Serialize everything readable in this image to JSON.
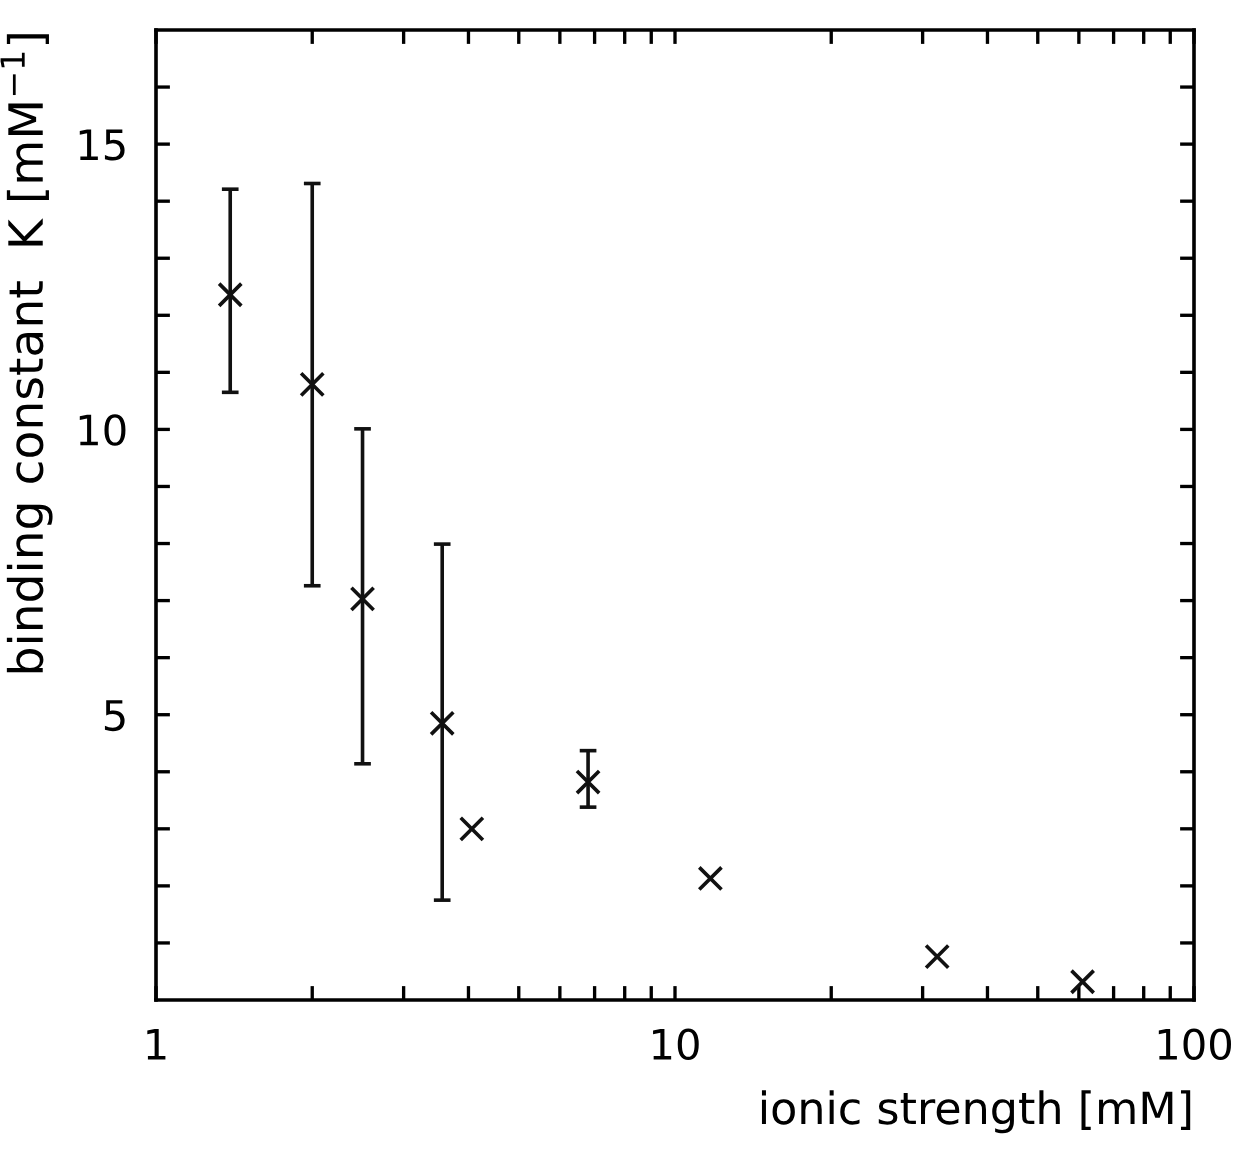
{
  "chart_data": {
    "type": "scatter",
    "xlabel": "ionic strength [mM]",
    "ylabel": "binding constant  K [mM$^{−1}$]",
    "x": [
      1.39,
      2.0,
      2.5,
      3.56,
      4.06,
      6.8,
      11.7,
      32,
      61
    ],
    "values": [
      12.36,
      10.79,
      7.03,
      4.85,
      3.0,
      3.82,
      2.13,
      0.76,
      0.32
    ],
    "errors": [
      [
        10.65,
        14.21
      ],
      [
        7.26,
        14.31
      ],
      [
        4.14,
        10.01
      ],
      [
        1.75,
        7.99
      ],
      null,
      [
        3.38,
        4.37
      ],
      null,
      null,
      null
    ],
    "color": "#111111",
    "marker": "cross",
    "log": "x",
    "grid": false,
    "legend": false,
    "xlim": [
      1,
      100
    ],
    "ylim": [
      0,
      17
    ],
    "xticks": [
      1,
      {
        "value": 2,
        "label": null
      },
      {
        "value": 3,
        "label": null
      },
      {
        "value": 4,
        "label": null
      },
      {
        "value": 5,
        "label": null
      },
      {
        "value": 6,
        "label": null
      },
      {
        "value": 7,
        "label": null
      },
      {
        "value": 8,
        "label": null
      },
      {
        "value": 9,
        "label": null
      },
      10,
      {
        "value": 20,
        "label": null
      },
      {
        "value": 30,
        "label": null
      },
      {
        "value": 40,
        "label": null
      },
      {
        "value": 50,
        "label": null
      },
      {
        "value": 60,
        "label": null
      },
      {
        "value": 70,
        "label": null
      },
      {
        "value": 80,
        "label": null
      },
      {
        "value": 90,
        "label": null
      },
      100
    ],
    "yticks": [
      {
        "value": 1,
        "label": null
      },
      {
        "value": 2,
        "label": null
      },
      {
        "value": 3,
        "label": null
      },
      {
        "value": 4,
        "label": null
      },
      5,
      {
        "value": 6,
        "label": null
      },
      {
        "value": 7,
        "label": null
      },
      {
        "value": 8,
        "label": null
      },
      {
        "value": 9,
        "label": null
      },
      10,
      {
        "value": 11,
        "label": null
      },
      {
        "value": 12,
        "label": null
      },
      {
        "value": 13,
        "label": null
      },
      {
        "value": 14,
        "label": null
      },
      15,
      {
        "value": 16,
        "label": null
      }
    ]
  }
}
